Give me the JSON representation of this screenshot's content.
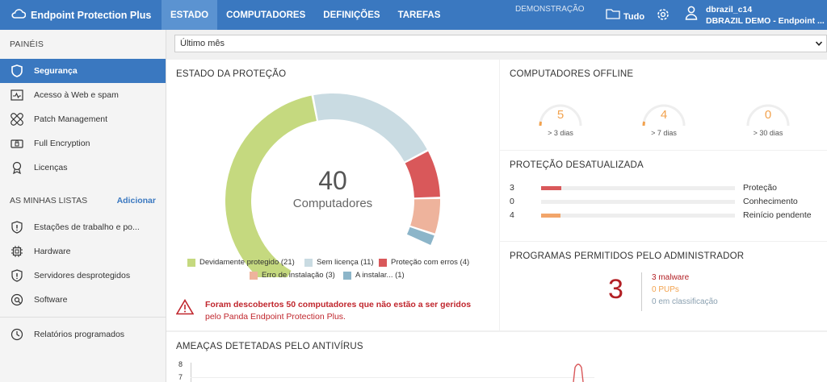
{
  "brand": {
    "name": "Endpoint Protection Plus"
  },
  "nav": {
    "tabs": [
      "ESTADO",
      "COMPUTADORES",
      "DEFINIÇÕES",
      "TAREFAS"
    ],
    "active": 0
  },
  "header": {
    "demo_label": "DEMONSTRAÇÃO",
    "folder_label": "Tudo",
    "user_name": "dbrazil_c14",
    "user_org": "DBRAZIL DEMO - Endpoint ..."
  },
  "sidebar": {
    "panels_title": "PAINÉIS",
    "items": [
      {
        "label": "Segurança",
        "icon": "shield-icon"
      },
      {
        "label": "Acesso à Web e spam",
        "icon": "web-activity-icon"
      },
      {
        "label": "Patch Management",
        "icon": "patch-icon"
      },
      {
        "label": "Full Encryption",
        "icon": "encryption-icon"
      },
      {
        "label": "Licenças",
        "icon": "license-icon"
      }
    ],
    "lists_title": "AS MINHAS LISTAS",
    "add_label": "Adicionar",
    "lists": [
      {
        "label": "Estações de trabalho e po...",
        "icon": "alert-shield-icon"
      },
      {
        "label": "Hardware",
        "icon": "chip-icon"
      },
      {
        "label": "Servidores desprotegidos",
        "icon": "alert-shield-icon"
      },
      {
        "label": "Software",
        "icon": "software-icon"
      }
    ],
    "scheduled": {
      "label": "Relatórios programados",
      "icon": "clock-icon"
    }
  },
  "filter": {
    "value": "Último mês"
  },
  "protection_status": {
    "title": "ESTADO DA PROTEÇÃO",
    "total": "40",
    "total_label": "Computadores",
    "warning_bold": "Foram descobertos 50 computadores que não estão a ser geridos",
    "warning_rest": " pelo Panda Endpoint Protection Plus."
  },
  "chart_data": {
    "type": "pie",
    "title": "ESTADO DA PROTEÇÃO",
    "series": [
      {
        "name": "Devidamente protegido (21)",
        "value": 21,
        "color": "#c5d97f"
      },
      {
        "name": "Sem licença (11)",
        "value": 11,
        "color": "#c9dbe2"
      },
      {
        "name": "Proteção com erros (4)",
        "value": 4,
        "color": "#d9585a"
      },
      {
        "name": "Erro de instalação (3)",
        "value": 3,
        "color": "#eeb39c"
      },
      {
        "name": "A instalar... (1)",
        "value": 1,
        "color": "#8cb5c9"
      }
    ]
  },
  "offline": {
    "title": "COMPUTADORES OFFLINE",
    "gauges": [
      {
        "value": "5",
        "label": "> 3 dias"
      },
      {
        "value": "4",
        "label": "> 7 dias"
      },
      {
        "value": "0",
        "label": "> 30 dias"
      }
    ]
  },
  "outdated": {
    "title": "PROTEÇÃO DESATUALIZADA",
    "rows": [
      {
        "count": "3",
        "label": "Proteção",
        "fraction": 0.105,
        "color": "#d9585a"
      },
      {
        "count": "0",
        "label": "Conhecimento",
        "fraction": 0,
        "color": "#d9585a"
      },
      {
        "count": "4",
        "label": "Reinício pendente",
        "fraction": 0.1,
        "color": "#f2a56a"
      }
    ]
  },
  "allowed": {
    "title": "PROGRAMAS PERMITIDOS PELO ADMINISTRADOR",
    "total": "3",
    "malware": "3 malware",
    "pups": "0 PUPs",
    "classifying": "0 em classificação"
  },
  "threats": {
    "title": "AMEAÇAS DETETADAS PELO ANTIVÍRUS",
    "y_ticks": [
      "8",
      "7"
    ]
  }
}
